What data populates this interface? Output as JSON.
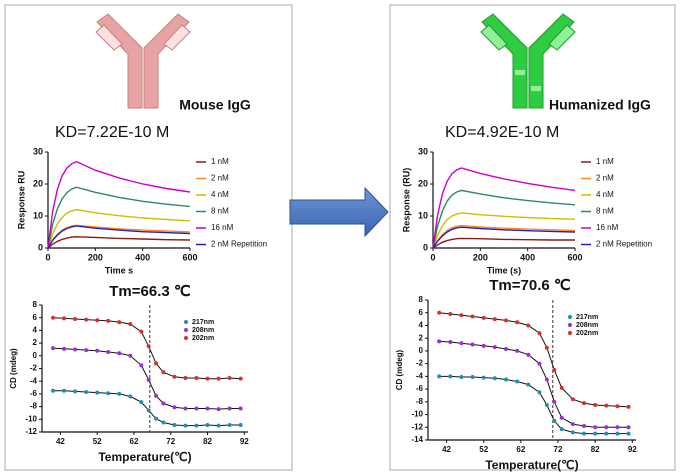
{
  "chart_data": [
    {
      "type": "line",
      "heading": "Mouse IgG",
      "title": "KD=7.22E-10 M",
      "x_label": "Time s",
      "y_label": "Response RU",
      "x": [
        0,
        20,
        40,
        60,
        80,
        100,
        120,
        200,
        300,
        400,
        500,
        600
      ],
      "xlim": [
        0,
        600
      ],
      "xticks": [
        0,
        200,
        400,
        600
      ],
      "ylim": [
        0,
        30
      ],
      "yticks": [
        0,
        10,
        20,
        30
      ],
      "series": [
        {
          "name": "1 nM",
          "color": "#8b1a1a",
          "values": [
            0,
            1.2,
            2.1,
            2.7,
            3.1,
            3.4,
            3.5,
            3.3,
            3.0,
            2.8,
            2.6,
            2.5
          ]
        },
        {
          "name": "2 nM",
          "color": "#ff8c1a",
          "values": [
            0,
            2.5,
            4.3,
            5.6,
            6.4,
            6.9,
            7.1,
            6.6,
            6.0,
            5.6,
            5.3,
            5.0
          ]
        },
        {
          "name": "4 nM",
          "color": "#c8c000",
          "values": [
            0,
            4.5,
            7.6,
            9.6,
            10.9,
            11.6,
            12.0,
            11.0,
            10.1,
            9.4,
            8.9,
            8.5
          ]
        },
        {
          "name": "8 nM",
          "color": "#2e8b57",
          "values": [
            0,
            7.5,
            12.3,
            15.4,
            17.3,
            18.4,
            19.0,
            17.4,
            15.8,
            14.6,
            13.7,
            13.0
          ]
        },
        {
          "name": "16 nM",
          "color": "#cc00cc",
          "values": [
            0,
            11.5,
            18.5,
            22.6,
            25.0,
            26.3,
            27.0,
            24.3,
            21.9,
            20.0,
            18.6,
            17.5
          ]
        },
        {
          "name": "2 nM Repetition",
          "color": "#2020c0",
          "values": [
            0,
            2.4,
            4.1,
            5.3,
            6.1,
            6.6,
            6.9,
            6.2,
            5.6,
            5.1,
            4.8,
            4.5
          ]
        }
      ]
    },
    {
      "type": "scatter",
      "title": "Tm=66.3 ℃",
      "x_label": "Temperature(℃)",
      "y_label": "CD (mdeg)",
      "vline": 66.3,
      "x": [
        40,
        43,
        46,
        49,
        52,
        55,
        58,
        61,
        64,
        66,
        68,
        70,
        73,
        76,
        79,
        82,
        85,
        88,
        91
      ],
      "xlim": [
        37,
        93
      ],
      "xticks": [
        42,
        52,
        62,
        72,
        82,
        92
      ],
      "ylim": [
        -12,
        8
      ],
      "yticks": [
        -12,
        -10,
        -8,
        -6,
        -4,
        -2,
        0,
        2,
        4,
        6,
        8
      ],
      "series": [
        {
          "name": "217nm",
          "color": "#1f8fb0",
          "values": [
            -5.5,
            -5.5,
            -5.6,
            -5.7,
            -5.8,
            -5.9,
            -6.0,
            -6.4,
            -7.3,
            -8.6,
            -9.9,
            -10.5,
            -10.9,
            -11.0,
            -11.0,
            -10.9,
            -11.0,
            -10.9,
            -10.9
          ]
        },
        {
          "name": "208nm",
          "color": "#9a30d0",
          "values": [
            1.2,
            1.1,
            1.0,
            0.9,
            0.8,
            0.6,
            0.4,
            0.0,
            -1.5,
            -3.8,
            -6.3,
            -7.5,
            -8.1,
            -8.3,
            -8.3,
            -8.3,
            -8.4,
            -8.3,
            -8.3
          ]
        },
        {
          "name": "202nm",
          "color": "#d8302a",
          "values": [
            6.0,
            5.9,
            5.8,
            5.7,
            5.6,
            5.5,
            5.3,
            5.0,
            3.8,
            1.5,
            -1.2,
            -2.6,
            -3.3,
            -3.5,
            -3.5,
            -3.6,
            -3.6,
            -3.5,
            -3.6
          ]
        }
      ]
    },
    {
      "type": "line",
      "heading": "Humanized IgG",
      "title": "KD=4.92E-10 M",
      "x_label": "Time (s)",
      "y_label": "Response (RU)",
      "x": [
        0,
        20,
        40,
        60,
        80,
        100,
        120,
        200,
        300,
        400,
        500,
        600
      ],
      "xlim": [
        0,
        600
      ],
      "xticks": [
        0,
        200,
        400,
        600
      ],
      "ylim": [
        0,
        30
      ],
      "yticks": [
        0,
        10,
        20,
        30
      ],
      "series": [
        {
          "name": "1 nM",
          "color": "#8b1a1a",
          "values": [
            0,
            1.0,
            1.8,
            2.3,
            2.7,
            2.9,
            3.0,
            2.9,
            2.7,
            2.6,
            2.5,
            2.5
          ]
        },
        {
          "name": "2 nM",
          "color": "#ff8c1a",
          "values": [
            0,
            2.4,
            4.2,
            5.5,
            6.3,
            6.8,
            7.0,
            6.6,
            6.2,
            5.9,
            5.7,
            5.5
          ]
        },
        {
          "name": "4 nM",
          "color": "#c8c000",
          "values": [
            0,
            4.1,
            7.0,
            8.9,
            10.0,
            10.6,
            11.0,
            10.4,
            9.9,
            9.5,
            9.2,
            9.0
          ]
        },
        {
          "name": "8 nM",
          "color": "#2e8b57",
          "values": [
            0,
            7.0,
            11.6,
            14.7,
            16.5,
            17.5,
            18.0,
            16.9,
            15.7,
            14.8,
            14.1,
            13.5
          ]
        },
        {
          "name": "16 nM",
          "color": "#cc00cc",
          "values": [
            0,
            10.5,
            17.0,
            20.9,
            23.2,
            24.4,
            25.0,
            23.3,
            21.6,
            20.2,
            19.0,
            18.0
          ]
        },
        {
          "name": "2 nM Repetition",
          "color": "#2020c0",
          "values": [
            0,
            2.2,
            3.8,
            5.0,
            5.8,
            6.3,
            6.5,
            6.1,
            5.7,
            5.4,
            5.2,
            5.0
          ]
        }
      ]
    },
    {
      "type": "scatter",
      "title": "Tm=70.6 ℃",
      "x_label": "Temperature(℃)",
      "y_label": "CD (mdeg)",
      "vline": 70.6,
      "x": [
        40,
        43,
        46,
        49,
        52,
        55,
        58,
        61,
        64,
        67,
        69,
        71,
        73,
        76,
        79,
        82,
        85,
        88,
        91
      ],
      "xlim": [
        37,
        93
      ],
      "xticks": [
        42,
        52,
        62,
        72,
        82,
        92
      ],
      "ylim": [
        -14,
        8
      ],
      "yticks": [
        -14,
        -12,
        -10,
        -8,
        -6,
        -4,
        -2,
        0,
        2,
        4,
        6,
        8
      ],
      "series": [
        {
          "name": "217nm",
          "color": "#1f8fb0",
          "values": [
            -4.0,
            -4.0,
            -4.1,
            -4.1,
            -4.2,
            -4.3,
            -4.5,
            -4.8,
            -5.3,
            -6.5,
            -8.5,
            -11.0,
            -12.3,
            -12.8,
            -13.0,
            -13.0,
            -13.0,
            -13.0,
            -13.0
          ]
        },
        {
          "name": "208nm",
          "color": "#9a30d0",
          "values": [
            1.5,
            1.4,
            1.2,
            1.0,
            0.8,
            0.6,
            0.3,
            0.0,
            -0.6,
            -2.0,
            -4.5,
            -8.0,
            -10.5,
            -11.5,
            -11.8,
            -12.0,
            -12.0,
            -12.0,
            -12.0
          ]
        },
        {
          "name": "202nm",
          "color": "#d8302a",
          "values": [
            6.0,
            5.8,
            5.6,
            5.4,
            5.2,
            5.0,
            4.8,
            4.5,
            4.0,
            2.8,
            0.5,
            -3.0,
            -5.8,
            -7.6,
            -8.2,
            -8.5,
            -8.6,
            -8.7,
            -8.8
          ]
        }
      ]
    }
  ]
}
